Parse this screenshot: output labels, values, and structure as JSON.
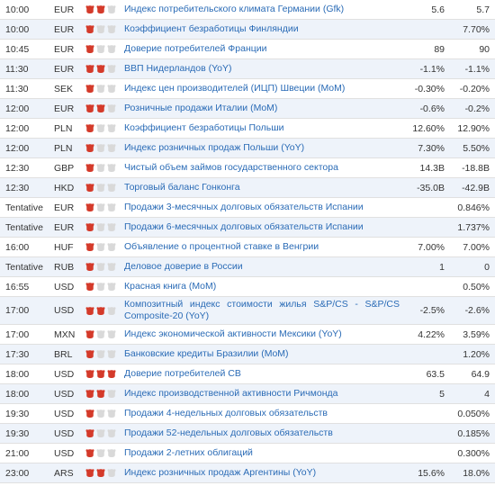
{
  "colors": {
    "row_alt_bg": "#eef3fa",
    "border": "#e0e0e0",
    "link": "#2a6bb6",
    "text": "#333333",
    "bull_on": "#d43a2a",
    "bull_off": "#d9d9d9"
  },
  "rows": [
    {
      "time": "10:00",
      "cur": "EUR",
      "importance": 2,
      "event": "Индекс потребительского климата Германии (Gfk)",
      "val": "5.6",
      "prev": "5.7"
    },
    {
      "time": "10:00",
      "cur": "EUR",
      "importance": 1,
      "event": "Коэффициент безработицы Финляндии",
      "val": "",
      "prev": "7.70%"
    },
    {
      "time": "10:45",
      "cur": "EUR",
      "importance": 1,
      "event": "Доверие потребителей Франции",
      "val": "89",
      "prev": "90"
    },
    {
      "time": "11:30",
      "cur": "EUR",
      "importance": 2,
      "event": "ВВП Нидерландов (YoY)",
      "val": "-1.1%",
      "prev": "-1.1%"
    },
    {
      "time": "11:30",
      "cur": "SEK",
      "importance": 1,
      "event": "Индекс цен производителей (ИЦП) Швеции (MoM)",
      "val": "-0.30%",
      "prev": "-0.20%"
    },
    {
      "time": "12:00",
      "cur": "EUR",
      "importance": 2,
      "event": "Розничные продажи Италии (MoM)",
      "val": "-0.6%",
      "prev": "-0.2%"
    },
    {
      "time": "12:00",
      "cur": "PLN",
      "importance": 1,
      "event": "Коэффициент безработицы Польши",
      "val": "12.60%",
      "prev": "12.90%"
    },
    {
      "time": "12:00",
      "cur": "PLN",
      "importance": 1,
      "event": "Индекс розничных продаж Польши (YoY)",
      "val": "7.30%",
      "prev": "5.50%"
    },
    {
      "time": "12:30",
      "cur": "GBP",
      "importance": 1,
      "event": "Чистый объем займов государственного сектора",
      "val": "14.3B",
      "prev": "-18.8B"
    },
    {
      "time": "12:30",
      "cur": "HKD",
      "importance": 1,
      "event": "Торговый баланс Гонконга",
      "val": "-35.0B",
      "prev": "-42.9B"
    },
    {
      "time": "Tentative",
      "cur": "EUR",
      "importance": 1,
      "event": "Продажи 3-месячных долговых обязательств Испании",
      "val": "",
      "prev": "0.846%"
    },
    {
      "time": "Tentative",
      "cur": "EUR",
      "importance": 1,
      "event": "Продажи 6-месячных долговых обязательств Испании",
      "val": "",
      "prev": "1.737%"
    },
    {
      "time": "16:00",
      "cur": "HUF",
      "importance": 1,
      "event": "Объявление о процентной ставке в Венгрии",
      "val": "7.00%",
      "prev": "7.00%"
    },
    {
      "time": "Tentative",
      "cur": "RUB",
      "importance": 1,
      "event": "Деловое доверие в России",
      "val": "1",
      "prev": "0"
    },
    {
      "time": "16:55",
      "cur": "USD",
      "importance": 1,
      "event": "Красная книга (MoM)",
      "val": "",
      "prev": "0.50%"
    },
    {
      "time": "17:00",
      "cur": "USD",
      "importance": 2,
      "event": "Композитный индекс стоимости жилья S&P/CS - S&P/CS Composite-20 (YoY)",
      "val": "-2.5%",
      "prev": "-2.6%"
    },
    {
      "time": "17:00",
      "cur": "MXN",
      "importance": 1,
      "event": "Индекс экономической активности Мексики (YoY)",
      "val": "4.22%",
      "prev": "3.59%"
    },
    {
      "time": "17:30",
      "cur": "BRL",
      "importance": 1,
      "event": "Банковские кредиты Бразилии (MoM)",
      "val": "",
      "prev": "1.20%"
    },
    {
      "time": "18:00",
      "cur": "USD",
      "importance": 3,
      "event": "Доверие потребителей CB",
      "val": "63.5",
      "prev": "64.9"
    },
    {
      "time": "18:00",
      "cur": "USD",
      "importance": 2,
      "event": "Индекс производственной активности Ричмонда",
      "val": "5",
      "prev": "4"
    },
    {
      "time": "19:30",
      "cur": "USD",
      "importance": 1,
      "event": "Продажи 4-недельных долговых обязательств",
      "val": "",
      "prev": "0.050%"
    },
    {
      "time": "19:30",
      "cur": "USD",
      "importance": 1,
      "event": "Продажи 52-недельных долговых обязательств",
      "val": "",
      "prev": "0.185%"
    },
    {
      "time": "21:00",
      "cur": "USD",
      "importance": 1,
      "event": "Продажи 2-летних облигаций",
      "val": "",
      "prev": "0.300%"
    },
    {
      "time": "23:00",
      "cur": "ARS",
      "importance": 2,
      "event": "Индекс розничных продаж Аргентины (YoY)",
      "val": "15.6%",
      "prev": "18.0%"
    }
  ]
}
